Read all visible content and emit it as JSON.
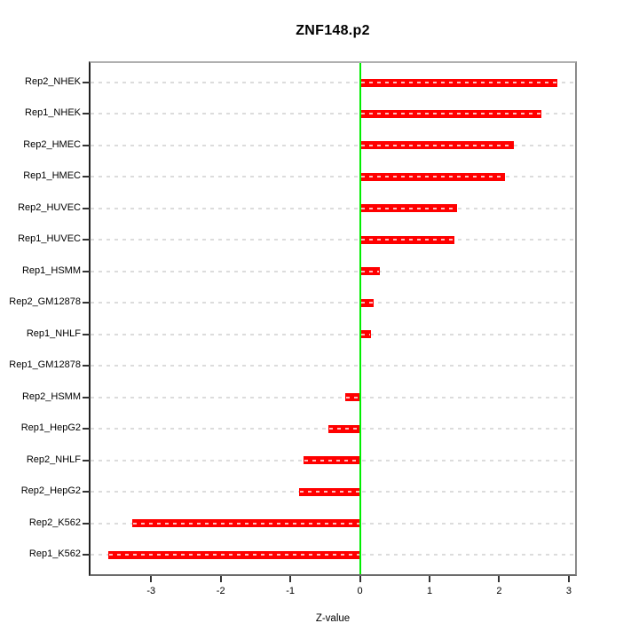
{
  "chart_data": {
    "type": "bar",
    "orientation": "horizontal",
    "title": "ZNF148.p2",
    "xlabel": "Z-value",
    "ylabel": "",
    "categories": [
      "Rep2_NHEK",
      "Rep1_NHEK",
      "Rep2_HMEC",
      "Rep1_HMEC",
      "Rep2_HUVEC",
      "Rep1_HUVEC",
      "Rep1_HSMM",
      "Rep2_GM12878",
      "Rep1_NHLF",
      "Rep1_GM12878",
      "Rep2_HSMM",
      "Rep1_HepG2",
      "Rep2_NHLF",
      "Rep2_HepG2",
      "Rep2_K562",
      "Rep1_K562"
    ],
    "values": [
      2.83,
      2.6,
      2.21,
      2.08,
      1.4,
      1.36,
      0.28,
      0.2,
      0.16,
      0.01,
      -0.21,
      -0.46,
      -0.81,
      -0.88,
      -3.27,
      -3.61
    ],
    "xticks": [
      -3,
      -2,
      -1,
      0,
      1,
      2,
      3
    ],
    "xtick_labels": [
      "-3",
      "-2",
      "-1",
      "0",
      "1",
      "2",
      "3"
    ],
    "xlim": [
      -3.87,
      3.09
    ],
    "grid": "horizontal dashed gridline per category",
    "zero_reference_line": 0,
    "legend": "none",
    "colors": {
      "bar": "#ff0000",
      "zero_line": "#00ee00",
      "grid": "#dcdcdc",
      "text": "#000000",
      "background": "#ffffff"
    }
  }
}
